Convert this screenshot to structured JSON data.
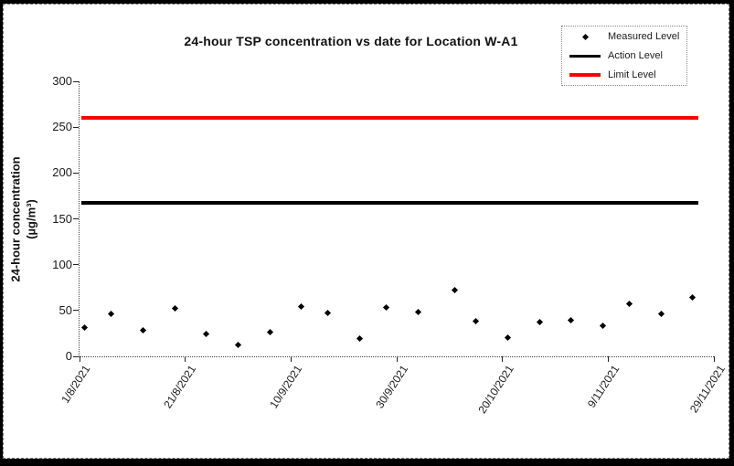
{
  "colors": {
    "background": "#ffffff",
    "frame": "#000000",
    "measured_marker": "#000000",
    "action_level_line": "#000000",
    "limit_level_line": "#ff0000",
    "text": "#1a1a1a"
  },
  "chart_data": {
    "type": "scatter",
    "title": "24-hour TSP concentration vs date for Location W-A1",
    "ylabel": "24-hour concentration (µg/m³)",
    "ylabel_line1": "24-hour concentration",
    "ylabel_line2": "(µg/m³)",
    "xlabel": "",
    "ylim": [
      0,
      300
    ],
    "y_ticks": [
      0,
      50,
      100,
      150,
      200,
      250,
      300
    ],
    "grid": false,
    "x_axis": {
      "tick_labels": [
        "1/8/2021",
        "21/8/2021",
        "10/9/2021",
        "30/9/2021",
        "20/10/2021",
        "9/11/2021",
        "29/11/2021"
      ],
      "tick_days": [
        0,
        20,
        40,
        60,
        80,
        100,
        120
      ],
      "range_days": [
        0,
        120
      ],
      "tick_interval_days": 20
    },
    "legend": {
      "position": "top-right",
      "measured_label": "Measured Level",
      "action_label": "Action Level",
      "limit_label": "Limit Level"
    },
    "measured_series": {
      "name": "Measured Level",
      "marker": "diamond",
      "color": "#000000",
      "days": [
        1,
        6,
        12,
        18,
        24,
        30,
        36,
        42,
        47,
        53,
        58,
        64,
        71,
        75,
        81,
        87,
        93,
        99,
        104,
        110,
        116
      ],
      "values": [
        31,
        46,
        28,
        52,
        24,
        12,
        26,
        54,
        47,
        19,
        53,
        48,
        72,
        38,
        20,
        37,
        39,
        33,
        57,
        46,
        64
      ]
    },
    "action_level": {
      "name": "Action Level",
      "value": 167,
      "color": "#000000",
      "span_days": [
        0.3,
        117
      ],
      "thickness_px": 4
    },
    "limit_level": {
      "name": "Limit Level",
      "value": 260,
      "color": "#ff0000",
      "span_days": [
        0.3,
        117
      ],
      "thickness_px": 4
    }
  }
}
